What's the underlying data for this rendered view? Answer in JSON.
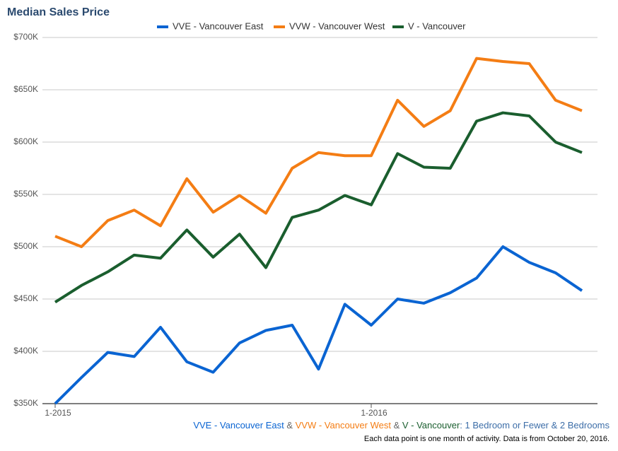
{
  "chart_data": {
    "type": "line",
    "title": "Median Sales Price",
    "categories": [
      "1-2015",
      null,
      null,
      null,
      null,
      null,
      null,
      null,
      null,
      null,
      null,
      null,
      "1-2016",
      null,
      null,
      null,
      null,
      null,
      null,
      null,
      null
    ],
    "series": [
      {
        "name": "VVE - Vancouver East",
        "color": "#0a64d2",
        "values": [
          350000,
          375000,
          399000,
          395000,
          423000,
          390000,
          380000,
          408000,
          420000,
          425000,
          383000,
          445000,
          425000,
          450000,
          446000,
          456000,
          470000,
          500000,
          485000,
          475000,
          458000
        ]
      },
      {
        "name": "VVW - Vancouver West",
        "color": "#f47d14",
        "values": [
          510000,
          500000,
          525000,
          535000,
          520000,
          565000,
          533000,
          549000,
          532000,
          575000,
          590000,
          587000,
          587000,
          640000,
          615000,
          630000,
          680000,
          677000,
          675000,
          640000,
          630000
        ]
      },
      {
        "name": "V - Vancouver",
        "color": "#1a5e2e",
        "values": [
          447000,
          463000,
          476000,
          492000,
          489000,
          516000,
          490000,
          512000,
          480000,
          528000,
          535000,
          549000,
          540000,
          589000,
          576000,
          575000,
          620000,
          628000,
          625000,
          600000,
          590000
        ]
      }
    ],
    "ylim": [
      350000,
      700000
    ],
    "yticks": [
      {
        "value": 350000,
        "label": "$350K"
      },
      {
        "value": 400000,
        "label": "$400K"
      },
      {
        "value": 450000,
        "label": "$450K"
      },
      {
        "value": 500000,
        "label": "$500K"
      },
      {
        "value": 550000,
        "label": "$550K"
      },
      {
        "value": 600000,
        "label": "$600K"
      },
      {
        "value": 650000,
        "label": "$650K"
      },
      {
        "value": 700000,
        "label": "$700K"
      }
    ],
    "grid": true,
    "legend": "top",
    "caption": [
      {
        "text": "VVE - Vancouver East",
        "color": "#0a64d2"
      },
      {
        "text": " & ",
        "color": "#666666"
      },
      {
        "text": "VVW - Vancouver West",
        "color": "#f47d14"
      },
      {
        "text": " & ",
        "color": "#666666"
      },
      {
        "text": "V - Vancouver",
        "color": "#1a5e2e"
      },
      {
        "text": ": 1 Bedroom or Fewer & 2 Bedrooms",
        "color": "#3d6ea8"
      }
    ],
    "note": "Each data point is one month of activity. Data is from October 20, 2016."
  }
}
